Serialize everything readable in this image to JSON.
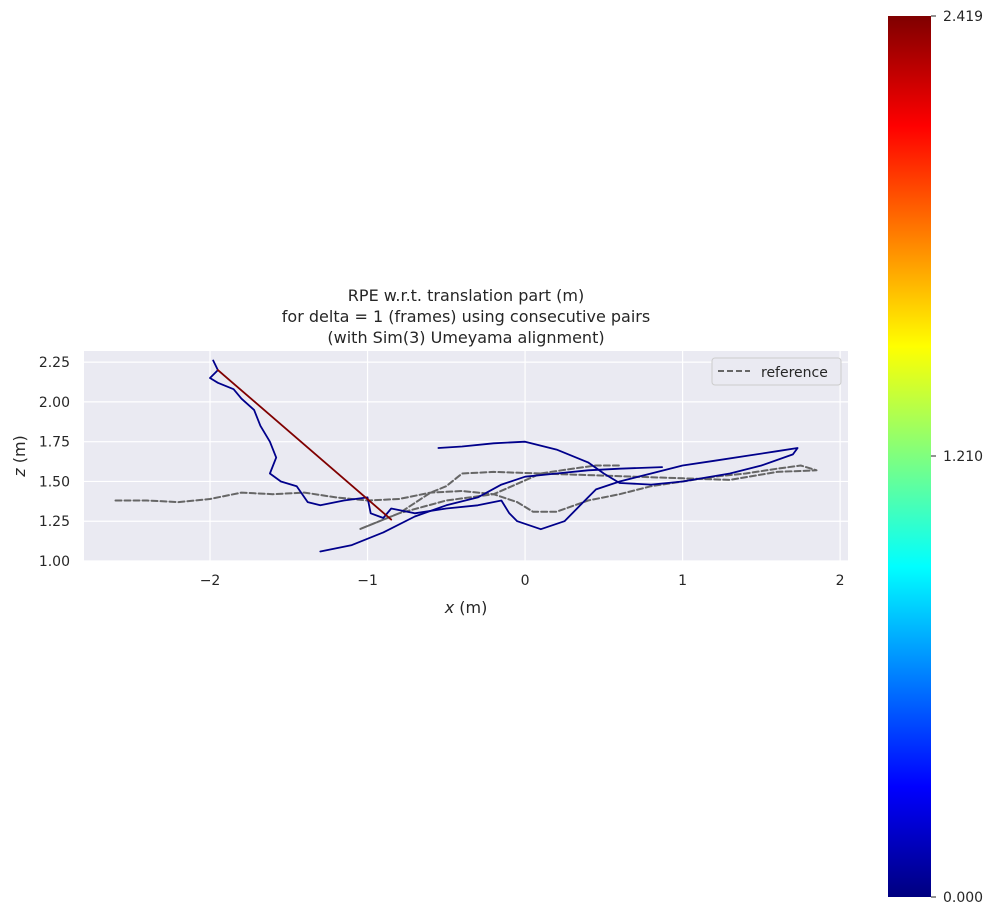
{
  "chart_data": {
    "type": "line",
    "title_lines": [
      "RPE w.r.t. translation part (m)",
      "for delta = 1 (frames) using consecutive pairs",
      "(with Sim(3) Umeyama alignment)"
    ],
    "xlabel": "x (m)",
    "ylabel": "z (m)",
    "xlim": [
      -2.8,
      2.05
    ],
    "ylim": [
      1.0,
      2.32
    ],
    "x_ticks": [
      -2,
      -1,
      0,
      1,
      2
    ],
    "x_tick_labels": [
      "−2",
      "−1",
      "0",
      "1",
      "2"
    ],
    "y_ticks": [
      1.0,
      1.25,
      1.5,
      1.75,
      2.0,
      2.25
    ],
    "y_tick_labels": [
      "1.00",
      "1.25",
      "1.50",
      "1.75",
      "2.00",
      "2.25"
    ],
    "grid": true,
    "legend": {
      "placement": "top-right",
      "entries": [
        "reference"
      ]
    },
    "series": [
      {
        "name": "reference",
        "style": "dashed",
        "color": "#666666",
        "points": [
          [
            -2.6,
            1.38
          ],
          [
            -2.4,
            1.38
          ],
          [
            -2.2,
            1.37
          ],
          [
            -2.0,
            1.39
          ],
          [
            -1.8,
            1.43
          ],
          [
            -1.6,
            1.42
          ],
          [
            -1.4,
            1.43
          ],
          [
            -1.2,
            1.4
          ],
          [
            -1.0,
            1.38
          ],
          [
            -0.8,
            1.39
          ],
          [
            -0.6,
            1.43
          ],
          [
            -0.4,
            1.44
          ],
          [
            -0.2,
            1.42
          ],
          [
            -0.05,
            1.37
          ],
          [
            0.05,
            1.31
          ],
          [
            0.2,
            1.31
          ],
          [
            0.4,
            1.38
          ],
          [
            0.6,
            1.42
          ],
          [
            0.8,
            1.47
          ],
          [
            1.0,
            1.5
          ],
          [
            1.2,
            1.53
          ],
          [
            1.4,
            1.55
          ],
          [
            1.6,
            1.58
          ],
          [
            1.75,
            1.6
          ],
          [
            1.85,
            1.57
          ],
          [
            1.6,
            1.56
          ],
          [
            1.3,
            1.51
          ],
          [
            1.0,
            1.52
          ],
          [
            0.7,
            1.53
          ],
          [
            0.4,
            1.54
          ],
          [
            0.1,
            1.55
          ],
          [
            -0.2,
            1.56
          ],
          [
            -0.4,
            1.55
          ],
          [
            -0.5,
            1.47
          ],
          [
            -0.6,
            1.43
          ],
          [
            -0.8,
            1.3
          ],
          [
            -1.05,
            1.2
          ],
          [
            -0.8,
            1.3
          ],
          [
            -0.5,
            1.38
          ],
          [
            -0.2,
            1.42
          ],
          [
            0.1,
            1.55
          ],
          [
            0.3,
            1.58
          ],
          [
            0.45,
            1.6
          ],
          [
            0.6,
            1.6
          ]
        ]
      },
      {
        "name": "",
        "style": "solid",
        "color": "#00008b",
        "points": [
          [
            -1.98,
            2.26
          ],
          [
            -1.95,
            2.2
          ],
          [
            -2.0,
            2.15
          ],
          [
            -1.95,
            2.12
          ],
          [
            -1.85,
            2.08
          ],
          [
            -1.8,
            2.02
          ],
          [
            -1.72,
            1.95
          ],
          [
            -1.68,
            1.85
          ],
          [
            -1.62,
            1.75
          ],
          [
            -1.58,
            1.65
          ],
          [
            -1.62,
            1.55
          ],
          [
            -1.55,
            1.5
          ],
          [
            -1.45,
            1.47
          ],
          [
            -1.38,
            1.37
          ],
          [
            -1.3,
            1.35
          ],
          [
            -1.15,
            1.38
          ],
          [
            -1.0,
            1.4
          ],
          [
            -0.98,
            1.3
          ],
          [
            -0.9,
            1.27
          ],
          [
            -0.85,
            1.33
          ],
          [
            -0.7,
            1.3
          ],
          [
            -0.5,
            1.33
          ],
          [
            -0.3,
            1.35
          ],
          [
            -0.15,
            1.38
          ],
          [
            -0.1,
            1.3
          ],
          [
            -0.05,
            1.25
          ],
          [
            0.1,
            1.2
          ],
          [
            0.25,
            1.25
          ],
          [
            0.35,
            1.35
          ],
          [
            0.45,
            1.45
          ],
          [
            0.6,
            1.5
          ],
          [
            0.8,
            1.55
          ],
          [
            1.0,
            1.6
          ],
          [
            1.2,
            1.63
          ],
          [
            1.4,
            1.66
          ],
          [
            1.6,
            1.69
          ],
          [
            1.73,
            1.71
          ],
          [
            1.7,
            1.67
          ],
          [
            1.5,
            1.6
          ],
          [
            1.3,
            1.55
          ],
          [
            1.0,
            1.5
          ],
          [
            0.8,
            1.48
          ],
          [
            0.6,
            1.49
          ],
          [
            0.5,
            1.55
          ],
          [
            0.4,
            1.62
          ],
          [
            0.2,
            1.7
          ],
          [
            0.0,
            1.75
          ],
          [
            -0.2,
            1.74
          ],
          [
            -0.4,
            1.72
          ],
          [
            -0.55,
            1.71
          ]
        ]
      },
      {
        "name": "",
        "style": "solid",
        "color": "#00008b",
        "points": [
          [
            -1.3,
            1.06
          ],
          [
            -1.1,
            1.1
          ],
          [
            -0.9,
            1.18
          ],
          [
            -0.7,
            1.28
          ],
          [
            -0.5,
            1.35
          ],
          [
            -0.3,
            1.4
          ],
          [
            -0.15,
            1.48
          ],
          [
            0.0,
            1.53
          ],
          [
            0.2,
            1.55
          ],
          [
            0.4,
            1.57
          ],
          [
            0.6,
            1.58
          ],
          [
            0.87,
            1.59
          ]
        ]
      },
      {
        "name": "",
        "style": "solid",
        "color": "#800000",
        "points": [
          [
            -1.95,
            2.2
          ],
          [
            -0.85,
            1.26
          ]
        ]
      }
    ],
    "colorbar": {
      "min": 0.0,
      "max": 2.419,
      "tick_labels": [
        "2.419",
        "1.210",
        "0.000"
      ],
      "colors": [
        "#00007f",
        "#0000ff",
        "#007fff",
        "#00ffff",
        "#7fff7f",
        "#ffff00",
        "#ff7f00",
        "#ff0000",
        "#7f0000"
      ]
    }
  }
}
